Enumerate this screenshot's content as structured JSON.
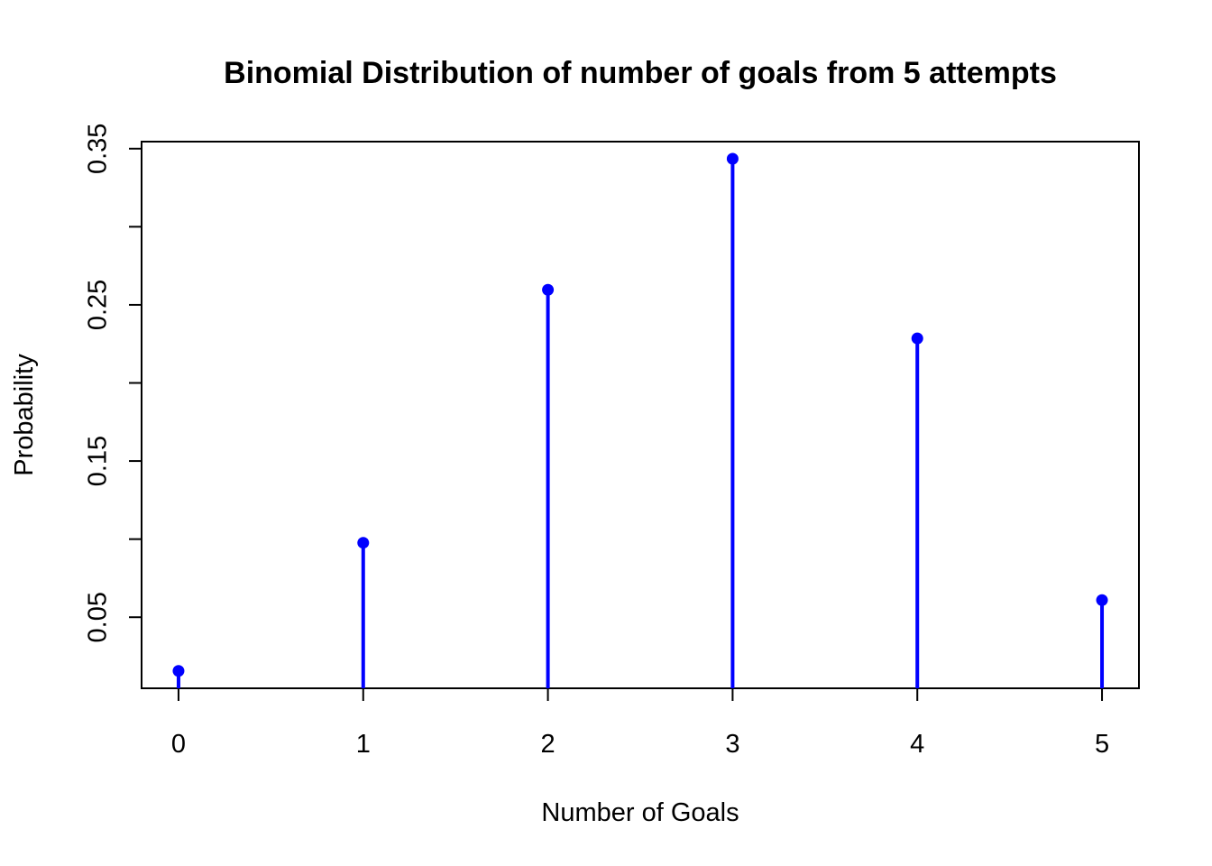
{
  "chart_data": {
    "type": "stem",
    "title": "Binomial Distribution of number of goals from 5 attempts",
    "xlabel": "Number of Goals",
    "ylabel": "Probability",
    "x": [
      0,
      1,
      2,
      3,
      4,
      5
    ],
    "values": [
      0.01562,
      0.09766,
      0.25965,
      0.34352,
      0.22852,
      0.06094
    ],
    "xlim": [
      -0.2,
      5.2
    ],
    "ylim": [
      0.0045,
      0.3545
    ],
    "x_ticks": [
      "0",
      "1",
      "2",
      "3",
      "4",
      "5"
    ],
    "y_ticks": [
      0.05,
      0.1,
      0.15,
      0.2,
      0.25,
      0.3,
      0.35
    ],
    "y_tick_labels": [
      "0.05",
      "",
      "0.15",
      "",
      "0.25",
      "",
      "0.35"
    ],
    "series_color": "#0000FF",
    "grid": false,
    "legend": "none"
  }
}
